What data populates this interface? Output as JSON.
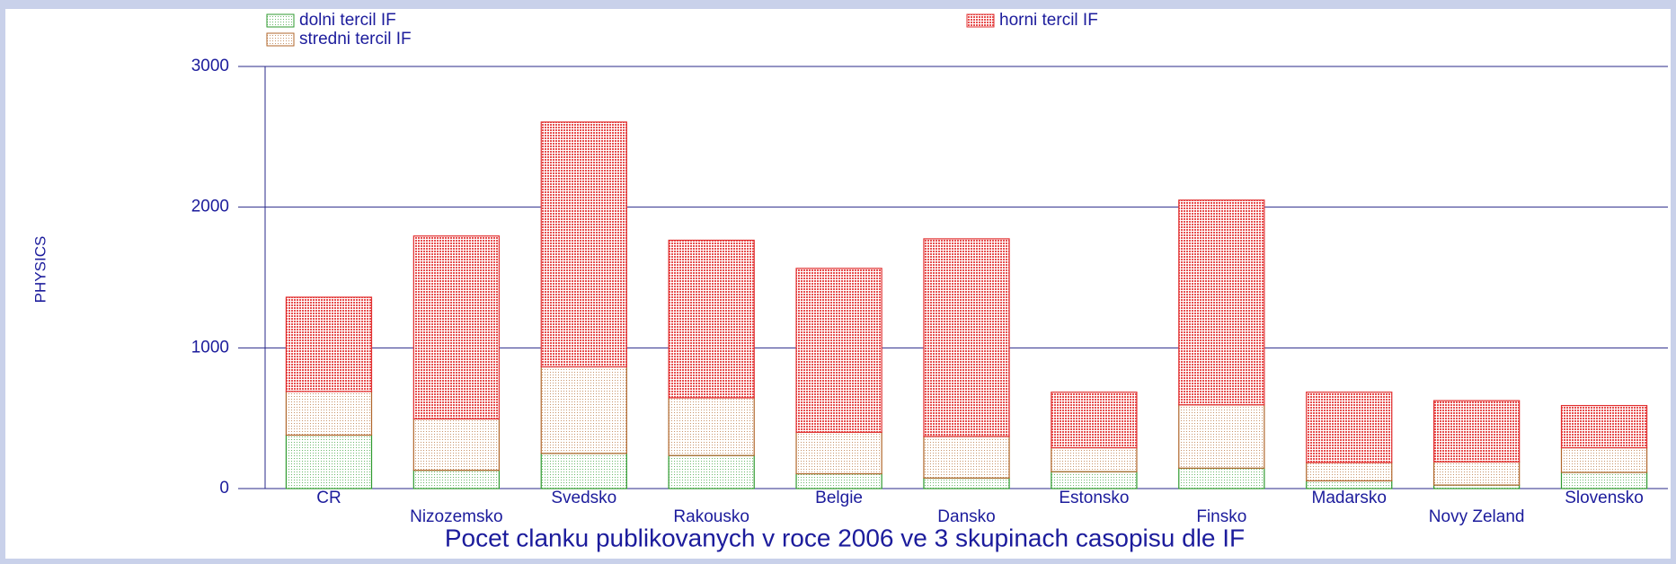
{
  "chart_data": {
    "type": "stacked_bar",
    "title": "Pocet clanku publikovanych v roce 2006 ve 3 skupinach casopisu dle IF",
    "y_label": "PHYSICS",
    "categories": [
      "CR",
      "Nizozemsko",
      "Svedsko",
      "Rakousko",
      "Belgie",
      "Dansko",
      "Estonsko",
      "Finsko",
      "Madarsko",
      "Novy Zeland",
      "Slovensko"
    ],
    "series": [
      {
        "name": "dolni tercil IF",
        "color": "#2e9a2e",
        "values": [
          380,
          130,
          250,
          235,
          105,
          75,
          120,
          145,
          55,
          25,
          115
        ]
      },
      {
        "name": "stredni tercil IF",
        "color": "#b0662a",
        "values": [
          310,
          365,
          615,
          410,
          295,
          295,
          170,
          450,
          130,
          165,
          175
        ]
      },
      {
        "name": "horni tercil IF",
        "color": "#e23030",
        "values": [
          670,
          1300,
          1740,
          1120,
          1165,
          1405,
          395,
          1455,
          500,
          435,
          300
        ]
      }
    ],
    "ylim": [
      0,
      3000
    ],
    "yticks": [
      0,
      1000,
      2000,
      3000
    ],
    "grid": true,
    "legend": "top"
  }
}
